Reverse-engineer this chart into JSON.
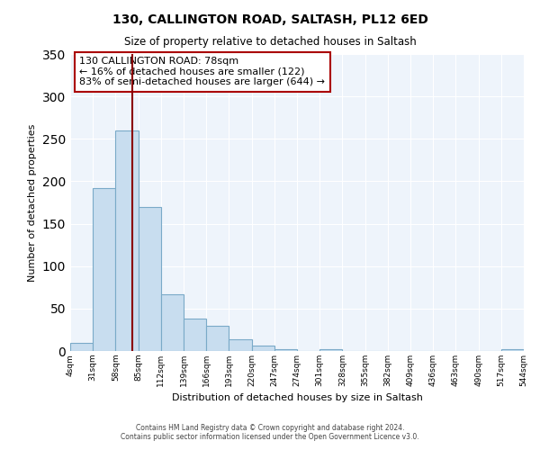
{
  "title": "130, CALLINGTON ROAD, SALTASH, PL12 6ED",
  "subtitle": "Size of property relative to detached houses in Saltash",
  "xlabel": "Distribution of detached houses by size in Saltash",
  "ylabel": "Number of detached properties",
  "bar_color": "#c8ddef",
  "bar_edge_color": "#7aaac8",
  "background_color": "#ffffff",
  "plot_bg_color": "#eef4fb",
  "grid_color": "#ffffff",
  "bin_edges": [
    4,
    31,
    58,
    85,
    112,
    139,
    166,
    193,
    220,
    247,
    274,
    301,
    328,
    355,
    382,
    409,
    436,
    463,
    490,
    517,
    544
  ],
  "bin_labels": [
    "4sqm",
    "31sqm",
    "58sqm",
    "85sqm",
    "112sqm",
    "139sqm",
    "166sqm",
    "193sqm",
    "220sqm",
    "247sqm",
    "274sqm",
    "301sqm",
    "328sqm",
    "355sqm",
    "382sqm",
    "409sqm",
    "436sqm",
    "463sqm",
    "490sqm",
    "517sqm",
    "544sqm"
  ],
  "bar_heights": [
    10,
    192,
    260,
    170,
    67,
    38,
    30,
    14,
    6,
    2,
    0,
    2,
    0,
    0,
    0,
    0,
    0,
    0,
    0,
    2
  ],
  "ylim": [
    0,
    350
  ],
  "yticks": [
    0,
    50,
    100,
    150,
    200,
    250,
    300,
    350
  ],
  "property_line_x": 78,
  "property_line_color": "#8b0000",
  "annotation_text": "130 CALLINGTON ROAD: 78sqm\n← 16% of detached houses are smaller (122)\n83% of semi-detached houses are larger (644) →",
  "annotation_box_color": "#ffffff",
  "annotation_box_edge": "#aa0000",
  "footer_line1": "Contains HM Land Registry data © Crown copyright and database right 2024.",
  "footer_line2": "Contains public sector information licensed under the Open Government Licence v3.0."
}
